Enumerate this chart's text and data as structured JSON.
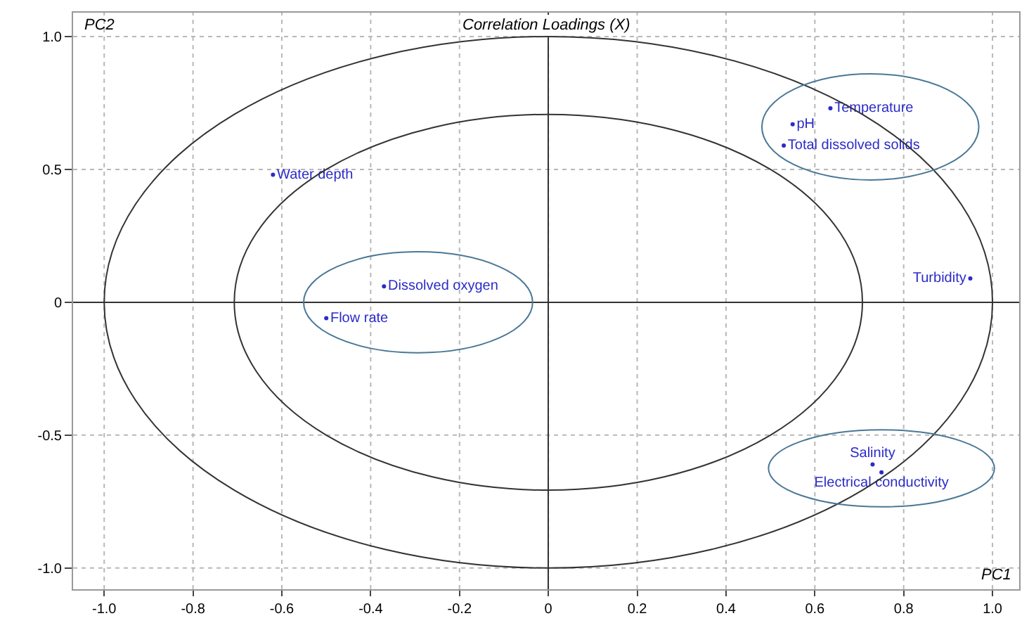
{
  "chart_data": {
    "type": "scatter",
    "title": "Correlation Loadings (X)",
    "xlabel": "PC1",
    "ylabel": "PC2",
    "xlim": [
      -1.07,
      1.06
    ],
    "ylim": [
      -1.08,
      1.09
    ],
    "xticks": [
      {
        "value": -1,
        "label": "-1.0"
      },
      -0.8,
      -0.6,
      -0.4,
      -0.2,
      0,
      0.2,
      0.4,
      0.6,
      0.8,
      {
        "value": 1,
        "label": "1.0"
      }
    ],
    "yticks": [
      {
        "value": -1,
        "label": "-1.0"
      },
      -0.5,
      0,
      0.5,
      {
        "value": 1,
        "label": "1.0"
      }
    ],
    "grid": true,
    "series": [
      {
        "color": "#2b2bc8",
        "marker": "circle",
        "x": [
          -0.62,
          -0.37,
          -0.5,
          0.635,
          0.55,
          0.53,
          0.95,
          0.73,
          0.75
        ],
        "values": [
          0.48,
          0.06,
          -0.06,
          0.73,
          0.67,
          0.59,
          0.09,
          -0.61,
          -0.64
        ],
        "value_labels": [
          "Water depth",
          "Dissolved oxygen",
          "Flow rate",
          "Temperature",
          "pH",
          "Total dissolved solids",
          "Turbidity",
          "Salinity",
          "Electrical conductivity"
        ]
      }
    ]
  }
}
